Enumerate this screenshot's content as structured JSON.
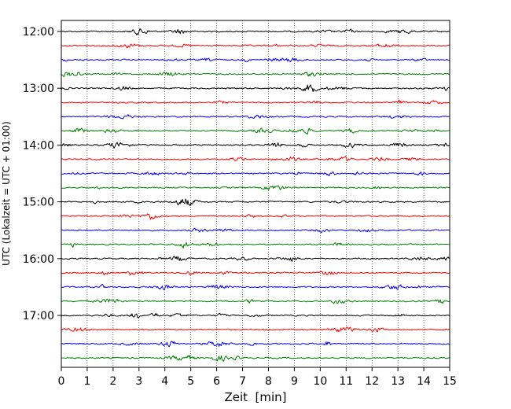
{
  "chart_data": {
    "type": "line",
    "title": "",
    "xlabel": "Zeit  [min]",
    "ylabel": "UTC (Lokalzeit = UTC + 01:00)",
    "xlim": [
      0,
      15
    ],
    "x_ticks": [
      "0",
      "1",
      "2",
      "3",
      "4",
      "5",
      "6",
      "7",
      "8",
      "9",
      "10",
      "11",
      "12",
      "13",
      "14",
      "15"
    ],
    "y_tick_labels": [
      "12:00",
      "13:00",
      "14:00",
      "15:00",
      "16:00",
      "17:00"
    ],
    "trace_start": "12:00",
    "trace_interval_min": 15,
    "trace_count": 24,
    "series_colors": [
      "#000000",
      "#ff0000",
      "#0000ff",
      "#008000"
    ],
    "grid": "vertical dotted",
    "legend": "none"
  }
}
